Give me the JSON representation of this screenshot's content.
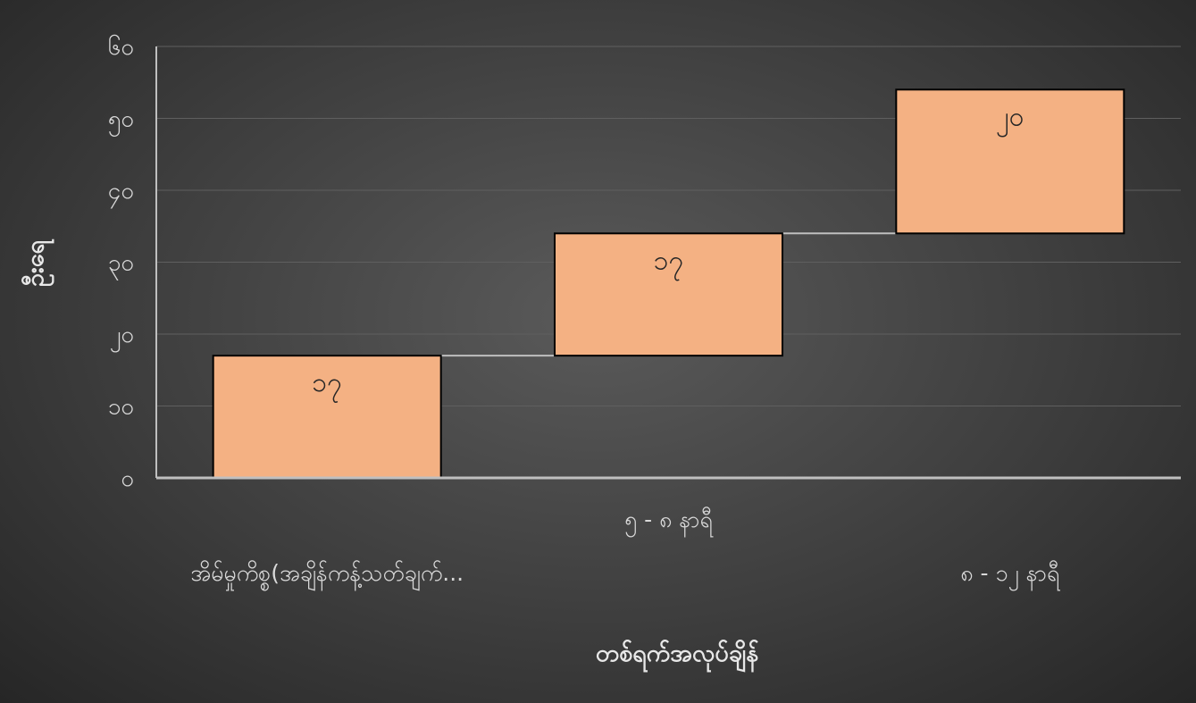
{
  "chart_data": {
    "type": "waterfall",
    "title": "",
    "xlabel": "တစ်ရက်အလုပ်ချိန်",
    "ylabel": "ဦးရေ",
    "categories": [
      "အိမ်မှုကိစ္စ(အချိန်ကန့်သတ်ချက်...",
      "၅ - ၈ နာရီ",
      "၈ - ၁၂ နာရီ"
    ],
    "values": [
      17,
      17,
      20
    ],
    "value_labels": [
      "၁၇",
      "၁၇",
      "၂၀"
    ],
    "ylim": [
      0,
      60
    ],
    "yticks": [
      0,
      10,
      20,
      30,
      40,
      50,
      60
    ],
    "ytick_labels": [
      "၀",
      "၁၀",
      "၂၀",
      "၃၀",
      "၄၀",
      "၅၀",
      "၆၀"
    ],
    "grid": true,
    "legend": "none",
    "colors": {
      "bar_fill": "#F4B183",
      "bar_stroke": "#000000",
      "connector": "#bfbfbf",
      "gridline": "#5f5f5f",
      "axis": "#bfbfbf",
      "text": "#d9d9d9"
    }
  }
}
